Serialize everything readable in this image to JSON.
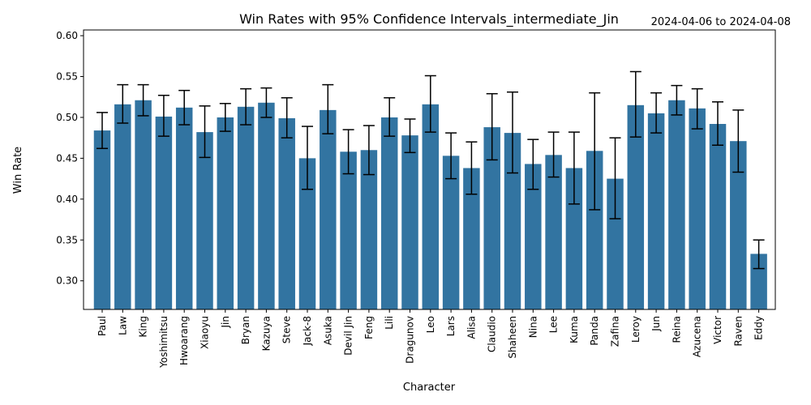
{
  "chart_data": {
    "type": "bar",
    "title": "Win Rates with 95% Confidence Intervals_intermediate_Jin",
    "subtitle": "2024-04-06 to 2024-04-08",
    "xlabel": "Character",
    "ylabel": "Win Rate",
    "ylim": [
      0.265,
      0.607
    ],
    "yticks": [
      0.3,
      0.35,
      0.4,
      0.45,
      0.5,
      0.55,
      0.6
    ],
    "ytick_labels": [
      "0.30",
      "0.35",
      "0.40",
      "0.45",
      "0.50",
      "0.55",
      "0.60"
    ],
    "bar_color": "#3274a1",
    "grid": false,
    "categories": [
      "Paul",
      "Law",
      "King",
      "Yoshimitsu",
      "Hwoarang",
      "Xiaoyu",
      "Jin",
      "Bryan",
      "Kazuya",
      "Steve",
      "Jack-8",
      "Asuka",
      "Devil Jin",
      "Feng",
      "Lili",
      "Dragunov",
      "Leo",
      "Lars",
      "Alisa",
      "Claudio",
      "Shaheen",
      "Nina",
      "Lee",
      "Kuma",
      "Panda",
      "Zafina",
      "Leroy",
      "Jun",
      "Reina",
      "Azucena",
      "Victor",
      "Raven",
      "Eddy"
    ],
    "values": [
      0.484,
      0.516,
      0.521,
      0.501,
      0.512,
      0.482,
      0.5,
      0.513,
      0.518,
      0.499,
      0.45,
      0.509,
      0.458,
      0.46,
      0.5,
      0.478,
      0.516,
      0.453,
      0.438,
      0.488,
      0.481,
      0.443,
      0.454,
      0.438,
      0.459,
      0.425,
      0.515,
      0.505,
      0.521,
      0.511,
      0.492,
      0.471,
      0.333
    ],
    "ci_lower": [
      0.462,
      0.493,
      0.502,
      0.477,
      0.491,
      0.451,
      0.483,
      0.491,
      0.5,
      0.475,
      0.412,
      0.48,
      0.431,
      0.43,
      0.477,
      0.457,
      0.482,
      0.425,
      0.406,
      0.448,
      0.432,
      0.412,
      0.427,
      0.394,
      0.387,
      0.376,
      0.476,
      0.481,
      0.503,
      0.486,
      0.466,
      0.433,
      0.315
    ],
    "ci_upper": [
      0.506,
      0.54,
      0.54,
      0.527,
      0.533,
      0.514,
      0.517,
      0.535,
      0.536,
      0.524,
      0.489,
      0.54,
      0.485,
      0.49,
      0.524,
      0.498,
      0.551,
      0.481,
      0.47,
      0.529,
      0.531,
      0.473,
      0.482,
      0.482,
      0.53,
      0.475,
      0.556,
      0.53,
      0.539,
      0.535,
      0.519,
      0.509,
      0.35
    ]
  }
}
